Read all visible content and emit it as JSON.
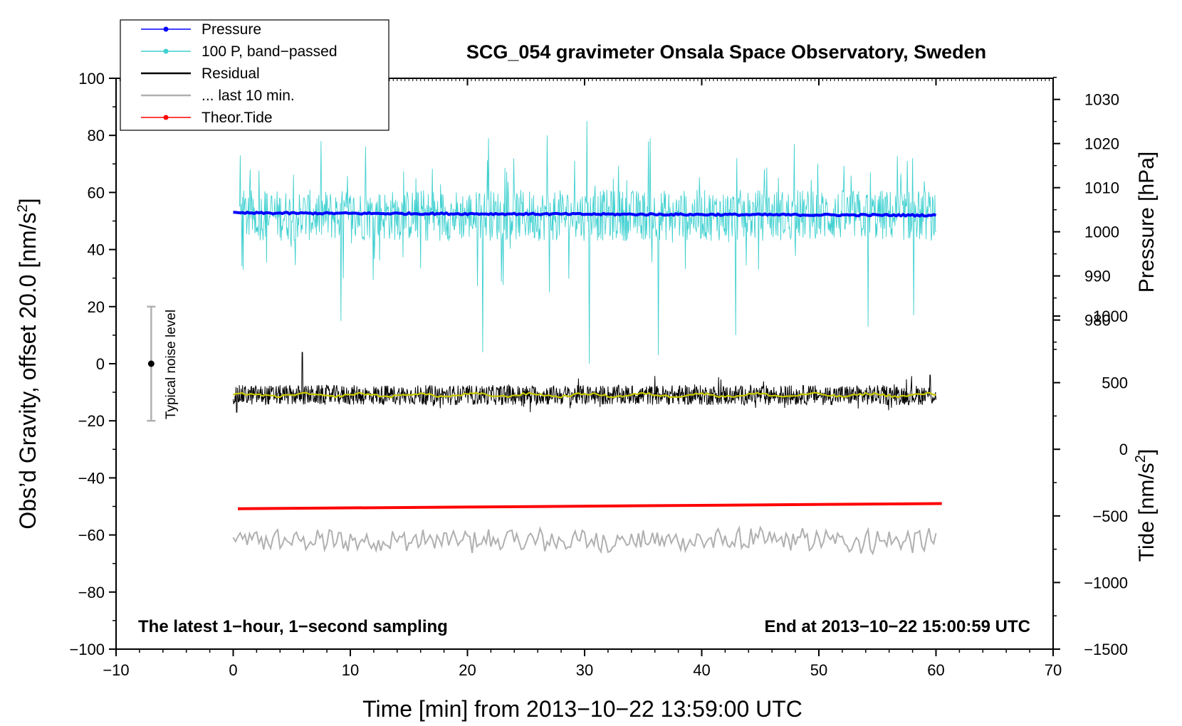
{
  "chart_data": {
    "type": "line",
    "title": "SCG_054 gravimeter Onsala Space Observatory, Sweden",
    "xlabel": "Time [min] from 2013−10−22 13:59:00 UTC",
    "ylabel_main": "Obs’d Gravity, offset 20.0 [nm/s",
    "ylabel_main_unit_sup": "2",
    "ylabel_main_close": "]",
    "ylabel_pressure": "Pressure [hPa]",
    "ylabel_tide": "Tide [nm/s",
    "ylabel_tide_unit_sup": "2",
    "ylabel_tide_close": "]",
    "xlim": [
      -10,
      70
    ],
    "ylim": [
      -100,
      100
    ],
    "x_ticks": [
      -10,
      0,
      10,
      20,
      30,
      40,
      50,
      60,
      70
    ],
    "x_tick_labels": [
      "−10",
      "0",
      "10",
      "20",
      "30",
      "40",
      "50",
      "60",
      "70"
    ],
    "y_ticks": [
      -100,
      -80,
      -60,
      -40,
      -20,
      0,
      20,
      40,
      60,
      80,
      100
    ],
    "y_tick_labels": [
      "−100",
      "−80",
      "−60",
      "−40",
      "−20",
      "0",
      "20",
      "40",
      "60",
      "80",
      "100"
    ],
    "pressure_ticks": [
      980,
      990,
      1000,
      1010,
      1020,
      1030
    ],
    "pressure_tick_labels": [
      "980",
      "990",
      "1000",
      "1010",
      "1020",
      "1030"
    ],
    "pressure_axis_map": {
      "p1": 980,
      "y1": 15.3,
      "p2": 1030,
      "y2": 92.6
    },
    "tide_ticks": [
      -1500,
      -1000,
      -500,
      0,
      500,
      1000
    ],
    "tide_tick_labels": [
      "−1500",
      "−1000",
      "−500",
      "0",
      "500",
      "1000"
    ],
    "tide_axis_map": {
      "t1": -1500,
      "y1": -100,
      "t2": 1000,
      "y2": 16.7
    },
    "grid": false,
    "legend_position": "top-left",
    "legend": [
      {
        "label": "Pressure",
        "color": "#0000ff",
        "marker": true
      },
      {
        "label": "100 P, band−passed",
        "color": "#40d0d0",
        "marker": true
      },
      {
        "label": "Residual",
        "color": "#000000",
        "marker": false
      },
      {
        "label": "... last 10 min.",
        "color": "#b0b0b0",
        "marker": false
      },
      {
        "label": "Theor.Tide",
        "color": "#ff0000",
        "marker": true
      }
    ],
    "annotation_left": "The latest 1−hour, 1−second sampling",
    "annotation_right": "End at 2013−10−22 15:00:59 UTC",
    "noise_bar": {
      "label": "Typical noise level",
      "x": -7,
      "center": 0,
      "low": -20,
      "high": 20
    },
    "series": [
      {
        "name": "Pressure",
        "color": "#0000ff",
        "x_range": [
          0,
          60
        ],
        "y_start": 52.8,
        "y_end": 52.0,
        "noise": 0.3
      },
      {
        "name": "100 P, band−passed",
        "color": "#40d0d0",
        "x_range": [
          0.5,
          60
        ],
        "y_center": 52,
        "amplitude": 9,
        "spikes": [
          {
            "x": 0.6,
            "y": 73
          },
          {
            "x": 9.2,
            "y": 15
          },
          {
            "x": 11.3,
            "y": 76
          },
          {
            "x": 21.3,
            "y": 4
          },
          {
            "x": 21.8,
            "y": 79
          },
          {
            "x": 26.8,
            "y": 80
          },
          {
            "x": 27.0,
            "y": 25
          },
          {
            "x": 30.2,
            "y": 85
          },
          {
            "x": 30.4,
            "y": 0
          },
          {
            "x": 36.3,
            "y": 3
          },
          {
            "x": 35.6,
            "y": 79
          },
          {
            "x": 43.0,
            "y": 72
          },
          {
            "x": 42.9,
            "y": 10
          },
          {
            "x": 58.0,
            "y": 72
          },
          {
            "x": 54.2,
            "y": 13
          },
          {
            "x": 58.1,
            "y": 17
          }
        ]
      },
      {
        "name": "Residual",
        "color": "#000000",
        "x_range": [
          0,
          60
        ],
        "y_center": -11,
        "amplitude": 3.5,
        "spikes": [
          {
            "x": 5.9,
            "y": 4
          },
          {
            "x": 0.3,
            "y": -17
          },
          {
            "x": 59.5,
            "y": -4
          }
        ]
      },
      {
        "name": "Residual smoothed",
        "color": "#c8c800",
        "x_range": [
          0,
          60
        ],
        "y_center": -11,
        "amplitude": 0.8
      },
      {
        "name": "... last 10 min.",
        "color": "#b0b0b0",
        "x_range": [
          0,
          60
        ],
        "y_center": -62,
        "amplitude": 3.8
      },
      {
        "name": "Theor.Tide",
        "color": "#ff0000",
        "x": [
          0.4,
          60.5
        ],
        "y": [
          -50.8,
          -49.0
        ]
      }
    ]
  }
}
